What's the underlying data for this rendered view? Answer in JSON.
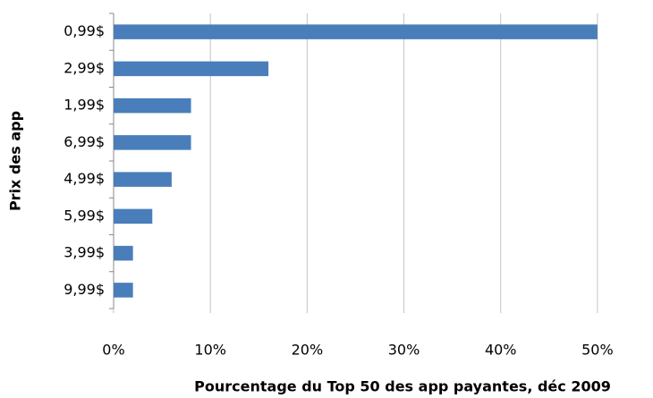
{
  "chart_data": {
    "type": "hbar",
    "x_label": "Pourcentage du Top 50 des app payantes, déc 2009",
    "y_label": "Prix des app",
    "categories": [
      "0,99$",
      "2,99$",
      "1,99$",
      "6,99$",
      "4,99$",
      "5,99$",
      "3,99$",
      "9,99$"
    ],
    "values": [
      50,
      16,
      8,
      8,
      6,
      4,
      2,
      2
    ],
    "color": "#4a7ebb",
    "xlim": [
      0,
      55
    ],
    "xticks": [
      {
        "value": 0,
        "label": "0%"
      },
      {
        "value": 10,
        "label": "10%"
      },
      {
        "value": 20,
        "label": "20%"
      },
      {
        "value": 30,
        "label": "30%"
      },
      {
        "value": 40,
        "label": "40%"
      },
      {
        "value": 50,
        "label": "50%"
      }
    ],
    "grid": true
  }
}
